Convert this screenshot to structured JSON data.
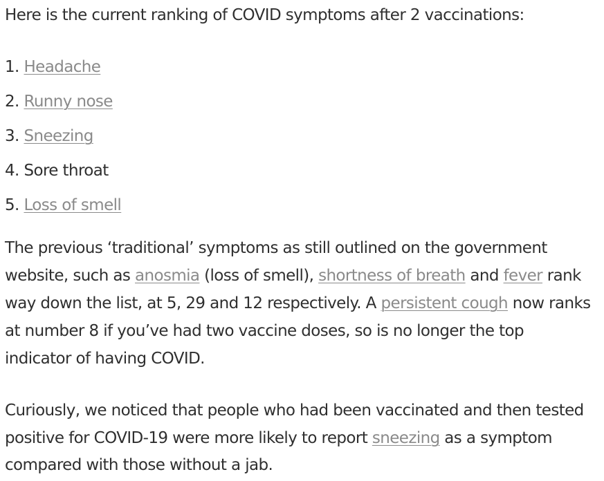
{
  "article": {
    "intro": "Here is the current ranking of COVID symptoms after 2 vaccinations:",
    "ranking": [
      {
        "num": "1.",
        "label": "Headache"
      },
      {
        "num": "2.",
        "label": "Runny nose"
      },
      {
        "num": "3.",
        "label": "Sneezing"
      },
      {
        "num": "4.",
        "label": "Sore throat"
      },
      {
        "num": "5.",
        "label": "Loss of smell"
      }
    ],
    "para1": {
      "l1": "The previous ‘traditional’ symptoms as still outlined on the government",
      "l2_a": "website, such as ",
      "l2_link1": "anosmia",
      "l2_b": " (loss of smell), ",
      "l2_link2": "shortness of breath",
      "l2_c": " and ",
      "l2_link3": "fever",
      "l2_d": " rank",
      "l3_a": "way down the list, at 5, 29 and 12 respectively. A ",
      "l3_link": "persistent cough",
      "l3_b": " now ranks",
      "l4": "at number 8 if you’ve had two vaccine doses, so is no longer the top",
      "l5": "indicator of having COVID."
    },
    "para2": {
      "l1": "Curiously, we noticed that people who had been vaccinated and then tested",
      "l2_a": "positive for COVID-19 were more likely to report ",
      "l2_link": "sneezing",
      "l2_b": " as a symptom",
      "l3": "compared with those without a jab."
    }
  }
}
